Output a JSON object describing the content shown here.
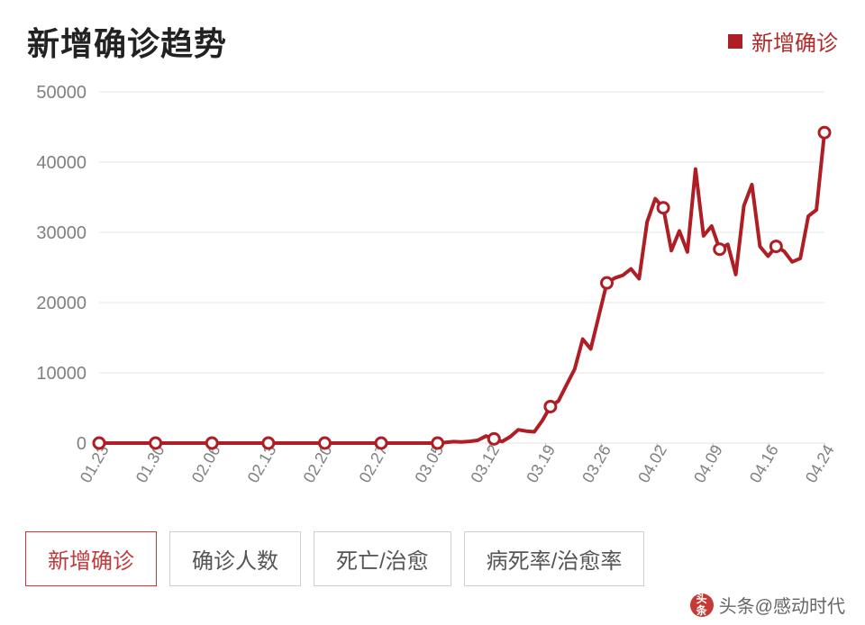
{
  "title": "新增确诊趋势",
  "legend": {
    "label": "新增确诊",
    "color": "#ae1e24"
  },
  "chart": {
    "type": "line",
    "background_color": "#ffffff",
    "grid_color": "#e6e6e6",
    "axis_color": "#bdbdbd",
    "label_color": "#808080",
    "line_color": "#ae1e24",
    "line_width": 4,
    "marker_fill": "#ffffff",
    "marker_stroke": "#ae1e24",
    "marker_radius": 6,
    "ylim": [
      0,
      50000
    ],
    "yticks": [
      0,
      10000,
      20000,
      30000,
      40000,
      50000
    ],
    "xlabels": [
      "01.23",
      "01.30",
      "02.06",
      "02.13",
      "02.20",
      "02.27",
      "03.05",
      "03.12",
      "03.19",
      "03.26",
      "04.02",
      "04.09",
      "04.16",
      "04.24"
    ],
    "xlabel_rotation": -60,
    "label_fontsize": 20,
    "values": [
      0,
      0,
      0,
      0,
      0,
      0,
      0,
      0,
      0,
      0,
      0,
      0,
      0,
      0,
      0,
      0,
      0,
      0,
      0,
      0,
      0,
      0,
      0,
      0,
      0,
      0,
      0,
      0,
      0,
      0,
      0,
      0,
      0,
      0,
      0,
      0,
      0,
      0,
      0,
      0,
      0,
      0,
      0,
      100,
      200,
      150,
      250,
      400,
      1000,
      600,
      200,
      900,
      1900,
      1700,
      1600,
      3200,
      5200,
      6000,
      8300,
      10500,
      14800,
      13400,
      18100,
      22800,
      23500,
      23900,
      24800,
      23400,
      31500,
      34800,
      33500,
      27400,
      30200,
      27200,
      39000,
      29500,
      30900,
      27600,
      28300,
      24000,
      33800,
      36800,
      28000,
      26600,
      28000,
      27300,
      25800,
      26300,
      32300,
      33200,
      44200
    ],
    "marker_indices": [
      0,
      7,
      14,
      21,
      28,
      35,
      42,
      49,
      56,
      63,
      70,
      77,
      84,
      90
    ]
  },
  "tabs": [
    {
      "label": "新增确诊",
      "active": true
    },
    {
      "label": "确诊人数",
      "active": false
    },
    {
      "label": "死亡/治愈",
      "active": false
    },
    {
      "label": "病死率/治愈率",
      "active": false
    }
  ],
  "watermark": {
    "logo_top": "头",
    "logo_bottom": "条",
    "text": "头条@感动时代"
  }
}
